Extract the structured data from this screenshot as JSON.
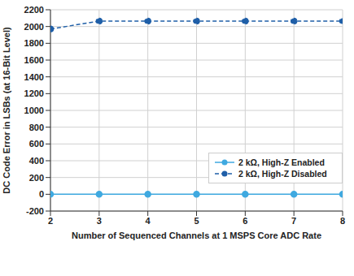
{
  "chart_data": {
    "type": "line",
    "x_label": "Number of Sequenced Channels at 1 MSPS Core ADC Rate",
    "y_label": "DC Code Error in LSBs (at 16-Bit Level)",
    "x": [
      2,
      3,
      4,
      5,
      6,
      7,
      8
    ],
    "series": [
      {
        "name": "2 kΩ, High-Z Enabled",
        "color": "#3fa9e0",
        "marker": "circle",
        "line_style": "solid",
        "values": [
          0,
          0,
          0,
          0,
          0,
          0,
          0
        ]
      },
      {
        "name": "2 kΩ, High-Z Disabled",
        "color": "#1f5fa8",
        "marker": "circle",
        "line_style": "dashed",
        "values": [
          1970,
          2065,
          2065,
          2065,
          2065,
          2065,
          2065
        ]
      }
    ],
    "xlim": [
      2,
      8
    ],
    "xticks": [
      2,
      3,
      4,
      5,
      6,
      7,
      8
    ],
    "ylim": [
      -200,
      2200
    ],
    "yticks": [
      -200,
      0,
      200,
      400,
      600,
      800,
      1000,
      1200,
      1400,
      1600,
      1800,
      2000,
      2200
    ],
    "grid": true,
    "legend": "right"
  }
}
